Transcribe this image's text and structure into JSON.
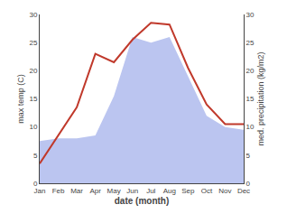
{
  "chart_data": {
    "type": "line",
    "xlabel": "date (month)",
    "ylabel": "max temp (C)",
    "y2label": "med. precipitation (kg/m2)",
    "categories": [
      "Jan",
      "Feb",
      "Mar",
      "Apr",
      "May",
      "Jun",
      "Jul",
      "Aug",
      "Sep",
      "Oct",
      "Nov",
      "Dec"
    ],
    "series": [
      {
        "type": "area",
        "axis": "y2",
        "color": "#bbc5f0",
        "values": [
          7.5,
          8.0,
          8.0,
          8.5,
          15.5,
          26.0,
          25.0,
          26.0,
          19.0,
          12.0,
          10.0,
          9.5
        ]
      },
      {
        "type": "line",
        "color": "#c0392b",
        "values": [
          3.5,
          8.5,
          13.5,
          23.0,
          21.5,
          25.5,
          28.5,
          28.2,
          20.5,
          14.0,
          10.5,
          10.5
        ]
      }
    ],
    "ylim": [
      0,
      30
    ],
    "yticks": [
      0,
      5,
      10,
      15,
      20,
      25,
      30
    ],
    "y2lim": [
      0,
      30
    ],
    "y2ticks": [
      0,
      5,
      10,
      15,
      20,
      25,
      30
    ],
    "grid": false
  }
}
